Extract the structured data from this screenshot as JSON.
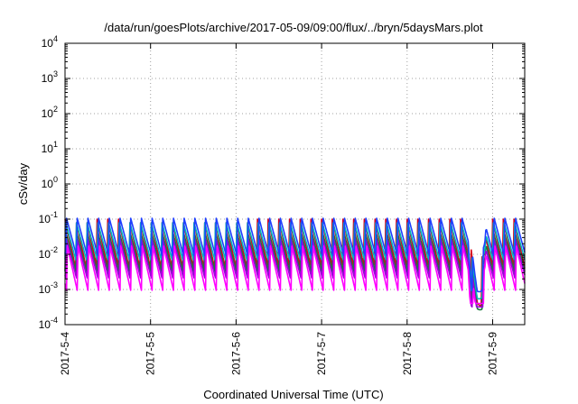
{
  "chart_data": {
    "type": "line",
    "title": "/data/run/goesPlots/archive/2017-05-09/09:00/flux/../bryn/5daysMars.plot",
    "xlabel": "Coordinated Universal Time (UTC)",
    "ylabel": "cSv/day",
    "yscale": "log",
    "ylim": [
      0.0001,
      10000
    ],
    "xlim": [
      "2017-05-04",
      "2017-05-09 09:00"
    ],
    "y_ticks": [
      {
        "base": "10",
        "exp": "-4"
      },
      {
        "base": "10",
        "exp": "-3"
      },
      {
        "base": "10",
        "exp": "-2"
      },
      {
        "base": "10",
        "exp": "-1"
      },
      {
        "base": "10",
        "exp": "0"
      },
      {
        "base": "10",
        "exp": "1"
      },
      {
        "base": "10",
        "exp": "2"
      },
      {
        "base": "10",
        "exp": "3"
      },
      {
        "base": "10",
        "exp": "4"
      }
    ],
    "x_ticks": [
      "2017-5-4",
      "2017-5-5",
      "2017-5-6",
      "2017-5-7",
      "2017-5-8",
      "2017-5-9"
    ],
    "grid": true,
    "legend": "none",
    "colors": [
      "#d4001c",
      "#1a7a3c",
      "#00b8b8",
      "#9b00d9",
      "#1f3fff",
      "#ff00ff"
    ],
    "sawtooth": {
      "period_hours": 3,
      "series": [
        {
          "peak": 0.1,
          "trough": 0.004
        },
        {
          "peak": 0.05,
          "trough": 0.003
        },
        {
          "peak": 0.08,
          "trough": 0.006
        },
        {
          "peak": 0.03,
          "trough": 0.002
        },
        {
          "peak": 0.11,
          "trough": 0.008
        },
        {
          "peak": 0.02,
          "trough": 0.0009
        }
      ],
      "dip": {
        "start_day": 4.72,
        "end_day": 4.92,
        "min_value": 0.0002
      }
    }
  }
}
